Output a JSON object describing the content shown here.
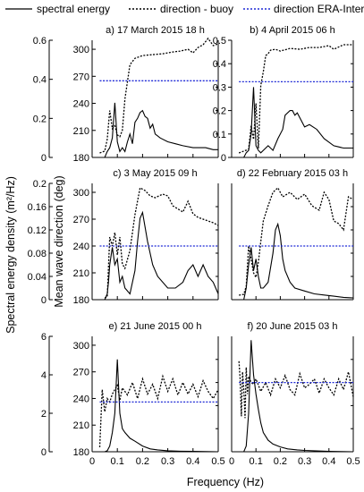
{
  "legend": {
    "spectral": "spectral energy",
    "buoy": "direction - buoy",
    "era": "direction ERA-Interim"
  },
  "labels": {
    "ylabel_left": "Spectral energy density (m²/Hz)",
    "ylabel_mid": "Mean wave direction (deg)",
    "xlabel": "Frequency (Hz)"
  },
  "colors": {
    "spectral": "#000000",
    "buoy": "#000000",
    "era": "#1f2ad6"
  },
  "chart_data": [
    {
      "type": "line",
      "title": "a) 17 March 2015 18 h",
      "xlim": [
        0,
        0.5
      ],
      "energy_ylim": [
        0,
        0.6
      ],
      "energy_ticks": [
        "0",
        "0.2",
        "0.4",
        "0.6"
      ],
      "dir_ylim": [
        180,
        310
      ],
      "dir_ticks": [
        "180",
        "210",
        "240",
        "270",
        "300"
      ],
      "series": [
        {
          "name": "spectral energy",
          "x": [
            0.02,
            0.05,
            0.06,
            0.07,
            0.08,
            0.09,
            0.1,
            0.11,
            0.12,
            0.13,
            0.14,
            0.15,
            0.16,
            0.17,
            0.18,
            0.19,
            0.2,
            0.21,
            0.22,
            0.23,
            0.24,
            0.25,
            0.27,
            0.3,
            0.33,
            0.36,
            0.4,
            0.45,
            0.48,
            0.5
          ],
          "y": [
            0.0,
            0.0,
            0.03,
            0.05,
            0.1,
            0.28,
            0.08,
            0.03,
            0.05,
            0.03,
            0.08,
            0.12,
            0.07,
            0.18,
            0.2,
            0.23,
            0.24,
            0.21,
            0.2,
            0.15,
            0.17,
            0.12,
            0.1,
            0.08,
            0.07,
            0.06,
            0.05,
            0.05,
            0.04,
            0.04
          ]
        },
        {
          "name": "direction - buoy",
          "x": [
            0.03,
            0.05,
            0.06,
            0.07,
            0.08,
            0.09,
            0.1,
            0.11,
            0.12,
            0.13,
            0.15,
            0.17,
            0.2,
            0.24,
            0.28,
            0.32,
            0.35,
            0.38,
            0.4,
            0.42,
            0.44,
            0.46,
            0.48,
            0.5
          ],
          "y": [
            185,
            187,
            200,
            232,
            212,
            215,
            205,
            203,
            210,
            245,
            283,
            290,
            293,
            294,
            295,
            297,
            298,
            300,
            296,
            302,
            305,
            312,
            304,
            306
          ]
        },
        {
          "name": "direction ERA-Interim",
          "x": [
            0.03,
            0.5
          ],
          "y": [
            265,
            265
          ]
        }
      ]
    },
    {
      "type": "line",
      "title": "b) 4 April 2015 06 h",
      "xlim": [
        0,
        0.5
      ],
      "energy_ylim": [
        0,
        0.5
      ],
      "energy_ticks": [
        "0",
        "0.1",
        "0.2",
        "0.3",
        "0.4",
        "0.5"
      ],
      "dir_ylim": [
        180,
        310
      ],
      "dir_ticks": [],
      "series": [
        {
          "name": "spectral energy",
          "x": [
            0.03,
            0.05,
            0.06,
            0.07,
            0.08,
            0.09,
            0.1,
            0.11,
            0.12,
            0.13,
            0.15,
            0.17,
            0.19,
            0.21,
            0.22,
            0.24,
            0.25,
            0.26,
            0.27,
            0.3,
            0.32,
            0.35,
            0.38,
            0.42,
            0.46,
            0.5
          ],
          "y": [
            0.0,
            0.0,
            0.02,
            0.03,
            0.1,
            0.3,
            0.05,
            0.03,
            0.02,
            0.03,
            0.05,
            0.03,
            0.08,
            0.12,
            0.18,
            0.2,
            0.2,
            0.18,
            0.19,
            0.13,
            0.14,
            0.12,
            0.08,
            0.05,
            0.04,
            0.04
          ]
        },
        {
          "name": "direction - buoy",
          "x": [
            0.03,
            0.05,
            0.07,
            0.08,
            0.09,
            0.1,
            0.11,
            0.12,
            0.13,
            0.14,
            0.15,
            0.16,
            0.18,
            0.2,
            0.24,
            0.28,
            0.32,
            0.36,
            0.4,
            0.42,
            0.46,
            0.5
          ],
          "y": [
            185,
            187,
            189,
            215,
            200,
            240,
            190,
            260,
            275,
            293,
            295,
            299,
            300,
            298,
            301,
            300,
            302,
            302,
            304,
            300,
            305,
            305
          ]
        },
        {
          "name": "direction ERA-Interim",
          "x": [
            0.03,
            0.5
          ],
          "y": [
            264,
            264
          ]
        }
      ]
    },
    {
      "type": "line",
      "title": "c) 3 May 2015 09 h",
      "xlim": [
        0,
        0.5
      ],
      "energy_ylim": [
        0,
        0.2
      ],
      "energy_ticks": [
        "0",
        "0.04",
        "0.08",
        "0.12",
        "0.16",
        "0.2"
      ],
      "dir_ylim": [
        180,
        310
      ],
      "dir_ticks": [
        "180",
        "210",
        "240",
        "270",
        "300"
      ],
      "series": [
        {
          "name": "spectral energy",
          "x": [
            0.03,
            0.05,
            0.06,
            0.065,
            0.07,
            0.08,
            0.09,
            0.1,
            0.11,
            0.12,
            0.13,
            0.15,
            0.17,
            0.18,
            0.19,
            0.2,
            0.22,
            0.24,
            0.26,
            0.3,
            0.33,
            0.36,
            0.38,
            0.4,
            0.42,
            0.44,
            0.46,
            0.48,
            0.5
          ],
          "y": [
            0.0,
            0.0,
            0.01,
            0.03,
            0.06,
            0.09,
            0.06,
            0.07,
            0.03,
            0.04,
            0.02,
            0.01,
            0.05,
            0.1,
            0.14,
            0.15,
            0.1,
            0.06,
            0.04,
            0.02,
            0.02,
            0.03,
            0.05,
            0.06,
            0.04,
            0.06,
            0.04,
            0.03,
            0.01
          ]
        },
        {
          "name": "direction - buoy",
          "x": [
            0.05,
            0.06,
            0.07,
            0.08,
            0.09,
            0.1,
            0.11,
            0.12,
            0.13,
            0.15,
            0.17,
            0.19,
            0.21,
            0.23,
            0.25,
            0.28,
            0.3,
            0.32,
            0.36,
            0.38,
            0.4,
            0.42,
            0.46,
            0.48,
            0.5
          ],
          "y": [
            182,
            183,
            250,
            240,
            255,
            230,
            250,
            220,
            215,
            235,
            275,
            305,
            302,
            296,
            294,
            298,
            296,
            285,
            278,
            290,
            276,
            272,
            268,
            266,
            263
          ]
        },
        {
          "name": "direction ERA-Interim",
          "x": [
            0.03,
            0.5
          ],
          "y": [
            240,
            240
          ]
        }
      ]
    },
    {
      "type": "line",
      "title": "d) 22 February 2015 03 h",
      "xlim": [
        0,
        0.5
      ],
      "energy_ylim": [
        0,
        0.2
      ],
      "energy_ticks": [],
      "dir_ylim": [
        180,
        310
      ],
      "dir_ticks": [],
      "series": [
        {
          "name": "spectral energy",
          "x": [
            0.03,
            0.05,
            0.06,
            0.07,
            0.08,
            0.09,
            0.1,
            0.11,
            0.12,
            0.13,
            0.15,
            0.17,
            0.18,
            0.19,
            0.2,
            0.21,
            0.22,
            0.24,
            0.26,
            0.3,
            0.34,
            0.38,
            0.42,
            0.46,
            0.5
          ],
          "y": [
            0.0,
            0.0,
            0.02,
            0.06,
            0.09,
            0.05,
            0.07,
            0.04,
            0.02,
            0.02,
            0.03,
            0.08,
            0.12,
            0.13,
            0.11,
            0.07,
            0.05,
            0.03,
            0.02,
            0.015,
            0.01,
            0.008,
            0.006,
            0.004,
            0.003
          ]
        },
        {
          "name": "direction - buoy",
          "x": [
            0.03,
            0.05,
            0.06,
            0.07,
            0.08,
            0.09,
            0.1,
            0.11,
            0.12,
            0.13,
            0.15,
            0.17,
            0.19,
            0.21,
            0.24,
            0.27,
            0.3,
            0.33,
            0.36,
            0.38,
            0.4,
            0.42,
            0.44,
            0.46,
            0.48,
            0.5
          ],
          "y": [
            185,
            186,
            195,
            240,
            225,
            210,
            205,
            222,
            245,
            268,
            285,
            300,
            305,
            295,
            300,
            292,
            298,
            285,
            280,
            300,
            292,
            268,
            265,
            258,
            295,
            292
          ]
        },
        {
          "name": "direction ERA-Interim",
          "x": [
            0.03,
            0.5
          ],
          "y": [
            240,
            240
          ]
        }
      ]
    },
    {
      "type": "line",
      "title": "e) 21 June 2015 00 h",
      "xlim": [
        0,
        0.5
      ],
      "x_ticks": [
        "0",
        "0.1",
        "0.2",
        "0.3",
        "0.4",
        "0.5"
      ],
      "energy_ylim": [
        0,
        6
      ],
      "energy_ticks": [
        "0",
        "2",
        "4",
        "6"
      ],
      "dir_ylim": [
        180,
        310
      ],
      "dir_ticks": [
        "180",
        "210",
        "240",
        "270",
        "300"
      ],
      "series": [
        {
          "name": "spectral energy",
          "x": [
            0.03,
            0.05,
            0.06,
            0.07,
            0.08,
            0.09,
            0.1,
            0.11,
            0.12,
            0.13,
            0.15,
            0.17,
            0.2,
            0.23,
            0.26,
            0.3,
            0.35,
            0.4,
            0.45,
            0.5
          ],
          "y": [
            0.0,
            0.0,
            0.05,
            0.3,
            1.0,
            2.0,
            4.8,
            2.0,
            1.2,
            1.0,
            0.7,
            0.55,
            0.3,
            0.15,
            0.1,
            0.05,
            0.03,
            0.02,
            0.01,
            0.0
          ],
          "note": ""
        },
        {
          "name": "direction - buoy",
          "x": [
            0.03,
            0.04,
            0.05,
            0.06,
            0.07,
            0.08,
            0.09,
            0.1,
            0.11,
            0.12,
            0.14,
            0.16,
            0.18,
            0.2,
            0.22,
            0.24,
            0.26,
            0.28,
            0.3,
            0.32,
            0.34,
            0.36,
            0.38,
            0.4,
            0.42,
            0.44,
            0.46,
            0.48,
            0.5
          ],
          "y": [
            185,
            250,
            225,
            240,
            236,
            245,
            250,
            255,
            238,
            252,
            244,
            258,
            240,
            262,
            245,
            256,
            240,
            265,
            248,
            262,
            244,
            258,
            245,
            256,
            242,
            260,
            248,
            240,
            250
          ]
        },
        {
          "name": "direction ERA-Interim",
          "x": [
            0.03,
            0.5
          ],
          "y": [
            236,
            236
          ]
        }
      ]
    },
    {
      "type": "line",
      "title": "f) 20 June 2015 03 h",
      "xlim": [
        0,
        0.5
      ],
      "x_ticks": [
        "0",
        "0.1",
        "0.2",
        "0.3",
        "0.4",
        "0.5"
      ],
      "energy_ylim": [
        0,
        6
      ],
      "energy_ticks": [],
      "dir_ylim": [
        180,
        310
      ],
      "dir_ticks": [],
      "series": [
        {
          "name": "spectral energy",
          "x": [
            0.03,
            0.05,
            0.06,
            0.07,
            0.08,
            0.09,
            0.1,
            0.11,
            0.12,
            0.13,
            0.15,
            0.17,
            0.2,
            0.23,
            0.27,
            0.3,
            0.35,
            0.4,
            0.45,
            0.5
          ],
          "y": [
            0.0,
            0.0,
            0.3,
            2.0,
            5.8,
            4.0,
            3.0,
            2.2,
            1.5,
            1.0,
            0.6,
            0.4,
            0.25,
            0.15,
            0.1,
            0.07,
            0.04,
            0.02,
            0.01,
            0.0
          ]
        },
        {
          "name": "direction - buoy",
          "x": [
            0.03,
            0.035,
            0.04,
            0.045,
            0.05,
            0.055,
            0.06,
            0.065,
            0.07,
            0.08,
            0.09,
            0.1,
            0.12,
            0.14,
            0.16,
            0.18,
            0.2,
            0.22,
            0.24,
            0.26,
            0.28,
            0.3,
            0.32,
            0.34,
            0.36,
            0.38,
            0.4,
            0.42,
            0.44,
            0.46,
            0.48,
            0.5
          ],
          "y": [
            282,
            262,
            220,
            270,
            250,
            218,
            275,
            245,
            265,
            258,
            256,
            262,
            248,
            258,
            244,
            262,
            252,
            266,
            250,
            244,
            268,
            252,
            256,
            262,
            246,
            262,
            252,
            244,
            262,
            250,
            270,
            242
          ]
        },
        {
          "name": "direction ERA-Interim",
          "x": [
            0.03,
            0.5
          ],
          "y": [
            258,
            258
          ]
        }
      ]
    }
  ]
}
